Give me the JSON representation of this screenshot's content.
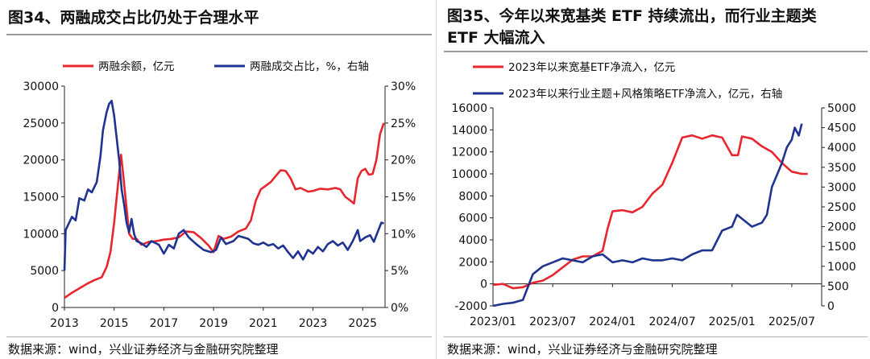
{
  "left": {
    "title": "图34、两融成交占比仍处于合理水平",
    "source": "数据来源：wind，兴业证券经济与金融研究院整理"
  },
  "right": {
    "title_line1": "图35、今年以来宽基类 ETF 持续流出，而行业主题类",
    "title_line2": "ETF 大幅流入",
    "source": "数据来源：wind，兴业证券经济与金融研究院整理"
  },
  "chart_data": [
    {
      "type": "line",
      "legend": [
        "两融余额，亿元",
        "两融成交占比，%，右轴"
      ],
      "x_ticks": [
        "2013",
        "2015",
        "2017",
        "2019",
        "2021",
        "2023",
        "2025"
      ],
      "y_left_ticks": [
        "0",
        "5000",
        "10000",
        "15000",
        "20000",
        "25000",
        "30000"
      ],
      "y_right_ticks": [
        "0%",
        "5%",
        "10%",
        "15%",
        "20%",
        "25%",
        "30%"
      ],
      "ylim_left": [
        0,
        30000
      ],
      "ylim_right": [
        0,
        30
      ],
      "xlim": [
        2013,
        2025.9
      ],
      "colors": {
        "balance": "#e8262e",
        "ratio": "#1f3390"
      },
      "series": [
        {
          "name": "两融余额，亿元",
          "axis": "left",
          "points": [
            [
              2013.0,
              1300
            ],
            [
              2013.3,
              2000
            ],
            [
              2013.6,
              2600
            ],
            [
              2013.9,
              3200
            ],
            [
              2014.2,
              3700
            ],
            [
              2014.5,
              4100
            ],
            [
              2014.7,
              5500
            ],
            [
              2014.85,
              7500
            ],
            [
              2015.0,
              11500
            ],
            [
              2015.15,
              16500
            ],
            [
              2015.28,
              20700
            ],
            [
              2015.38,
              17500
            ],
            [
              2015.5,
              13500
            ],
            [
              2015.6,
              10000
            ],
            [
              2015.75,
              9300
            ],
            [
              2015.9,
              9300
            ],
            [
              2016.1,
              8500
            ],
            [
              2016.4,
              8900
            ],
            [
              2016.7,
              9000
            ],
            [
              2017.0,
              9200
            ],
            [
              2017.3,
              9300
            ],
            [
              2017.6,
              9500
            ],
            [
              2017.9,
              10300
            ],
            [
              2018.2,
              10200
            ],
            [
              2018.5,
              9400
            ],
            [
              2018.8,
              8400
            ],
            [
              2019.0,
              7500
            ],
            [
              2019.2,
              9700
            ],
            [
              2019.4,
              9300
            ],
            [
              2019.7,
              9600
            ],
            [
              2020.0,
              10300
            ],
            [
              2020.3,
              10700
            ],
            [
              2020.5,
              11800
            ],
            [
              2020.7,
              14500
            ],
            [
              2020.9,
              16000
            ],
            [
              2021.1,
              16500
            ],
            [
              2021.3,
              17000
            ],
            [
              2021.5,
              17800
            ],
            [
              2021.7,
              18600
            ],
            [
              2021.9,
              18500
            ],
            [
              2022.1,
              17500
            ],
            [
              2022.3,
              16000
            ],
            [
              2022.5,
              16200
            ],
            [
              2022.8,
              15700
            ],
            [
              2023.0,
              15800
            ],
            [
              2023.3,
              16100
            ],
            [
              2023.6,
              16000
            ],
            [
              2023.9,
              16200
            ],
            [
              2024.1,
              16000
            ],
            [
              2024.3,
              15000
            ],
            [
              2024.5,
              14500
            ],
            [
              2024.65,
              14100
            ],
            [
              2024.8,
              17500
            ],
            [
              2024.95,
              18500
            ],
            [
              2025.1,
              18800
            ],
            [
              2025.25,
              18000
            ],
            [
              2025.4,
              18100
            ],
            [
              2025.55,
              20000
            ],
            [
              2025.7,
              23500
            ],
            [
              2025.85,
              25000
            ]
          ]
        },
        {
          "name": "两融成交占比，%，右轴",
          "axis": "right",
          "points": [
            [
              2013.0,
              5.0
            ],
            [
              2013.05,
              10.5
            ],
            [
              2013.15,
              11.2
            ],
            [
              2013.3,
              12.3
            ],
            [
              2013.45,
              11.8
            ],
            [
              2013.6,
              14.8
            ],
            [
              2013.8,
              14.5
            ],
            [
              2013.95,
              16.0
            ],
            [
              2014.1,
              15.6
            ],
            [
              2014.3,
              17.0
            ],
            [
              2014.45,
              20.5
            ],
            [
              2014.55,
              24.0
            ],
            [
              2014.7,
              26.5
            ],
            [
              2014.8,
              27.6
            ],
            [
              2014.9,
              28.0
            ],
            [
              2015.0,
              26.0
            ],
            [
              2015.1,
              23.0
            ],
            [
              2015.2,
              20.0
            ],
            [
              2015.3,
              16.0
            ],
            [
              2015.4,
              14.0
            ],
            [
              2015.5,
              11.5
            ],
            [
              2015.6,
              10.2
            ],
            [
              2015.7,
              12.0
            ],
            [
              2015.8,
              10.0
            ],
            [
              2015.9,
              9.0
            ],
            [
              2016.1,
              8.7
            ],
            [
              2016.3,
              8.2
            ],
            [
              2016.5,
              9.0
            ],
            [
              2016.8,
              8.5
            ],
            [
              2017.0,
              7.3
            ],
            [
              2017.2,
              8.5
            ],
            [
              2017.4,
              8.0
            ],
            [
              2017.6,
              10.0
            ],
            [
              2017.8,
              10.5
            ],
            [
              2018.0,
              9.5
            ],
            [
              2018.3,
              8.6
            ],
            [
              2018.6,
              7.8
            ],
            [
              2018.9,
              7.5
            ],
            [
              2019.1,
              7.8
            ],
            [
              2019.3,
              9.5
            ],
            [
              2019.5,
              8.6
            ],
            [
              2019.8,
              9.0
            ],
            [
              2020.0,
              9.7
            ],
            [
              2020.2,
              9.5
            ],
            [
              2020.4,
              9.3
            ],
            [
              2020.6,
              8.7
            ],
            [
              2020.8,
              8.5
            ],
            [
              2021.0,
              8.8
            ],
            [
              2021.2,
              8.4
            ],
            [
              2021.4,
              8.6
            ],
            [
              2021.6,
              8.0
            ],
            [
              2021.8,
              8.4
            ],
            [
              2022.0,
              7.5
            ],
            [
              2022.2,
              6.7
            ],
            [
              2022.4,
              7.6
            ],
            [
              2022.6,
              6.5
            ],
            [
              2022.8,
              7.8
            ],
            [
              2023.0,
              7.3
            ],
            [
              2023.2,
              8.2
            ],
            [
              2023.4,
              7.6
            ],
            [
              2023.6,
              8.6
            ],
            [
              2023.8,
              9.0
            ],
            [
              2024.0,
              8.4
            ],
            [
              2024.2,
              8.8
            ],
            [
              2024.4,
              7.8
            ],
            [
              2024.6,
              9.0
            ],
            [
              2024.8,
              10.5
            ],
            [
              2024.9,
              9.0
            ],
            [
              2025.1,
              9.5
            ],
            [
              2025.3,
              9.8
            ],
            [
              2025.45,
              8.9
            ],
            [
              2025.6,
              10.2
            ],
            [
              2025.75,
              11.5
            ],
            [
              2025.85,
              11.4
            ]
          ]
        }
      ]
    },
    {
      "type": "line",
      "legend": [
        "2023年以来宽基ETF净流入，亿元",
        "2023年以来行业主题+风格策略ETF净流入，亿元，右轴"
      ],
      "x_ticks": [
        "2023/01",
        "2023/07",
        "2024/01",
        "2024/07",
        "2025/01",
        "2025/07"
      ],
      "y_left_ticks": [
        "-2000",
        "0",
        "2000",
        "4000",
        "6000",
        "8000",
        "10000",
        "12000",
        "14000",
        "16000"
      ],
      "y_right_ticks": [
        "0",
        "500",
        "1000",
        "1500",
        "2000",
        "2500",
        "3000",
        "3500",
        "4000",
        "4500",
        "5000"
      ],
      "ylim_left": [
        -2000,
        16000
      ],
      "ylim_right": [
        0,
        5000
      ],
      "xlim": [
        0,
        33
      ],
      "colors": {
        "broad": "#e8262e",
        "sector": "#1f3390"
      },
      "series": [
        {
          "name": "2023年以来宽基ETF净流入，亿元",
          "axis": "left",
          "points": [
            [
              0,
              -100
            ],
            [
              1,
              0
            ],
            [
              2,
              -400
            ],
            [
              3,
              -300
            ],
            [
              4,
              100
            ],
            [
              5,
              300
            ],
            [
              6,
              800
            ],
            [
              7,
              1500
            ],
            [
              8,
              2200
            ],
            [
              9,
              2500
            ],
            [
              10,
              2500
            ],
            [
              11,
              3000
            ],
            [
              11.5,
              5000
            ],
            [
              12,
              6600
            ],
            [
              13,
              6700
            ],
            [
              14,
              6500
            ],
            [
              15,
              7000
            ],
            [
              16,
              8200
            ],
            [
              17,
              9000
            ],
            [
              18,
              11000
            ],
            [
              19,
              13300
            ],
            [
              20,
              13500
            ],
            [
              21,
              13200
            ],
            [
              22,
              13500
            ],
            [
              23,
              13300
            ],
            [
              24,
              11700
            ],
            [
              24.6,
              11700
            ],
            [
              25,
              13400
            ],
            [
              26,
              13200
            ],
            [
              27,
              12500
            ],
            [
              28,
              12000
            ],
            [
              29,
              11000
            ],
            [
              30,
              10200
            ],
            [
              31,
              10000
            ],
            [
              31.6,
              10000
            ]
          ]
        },
        {
          "name": "2023年以来行业主题+风格策略ETF净流入，亿元，右轴",
          "axis": "right",
          "points": [
            [
              0,
              0
            ],
            [
              1,
              50
            ],
            [
              2,
              80
            ],
            [
              3,
              150
            ],
            [
              4,
              800
            ],
            [
              5,
              1000
            ],
            [
              6,
              1100
            ],
            [
              7,
              1200
            ],
            [
              8,
              1150
            ],
            [
              9,
              1100
            ],
            [
              10,
              1250
            ],
            [
              11,
              1300
            ],
            [
              12,
              1100
            ],
            [
              13,
              1150
            ],
            [
              14,
              1100
            ],
            [
              15,
              1200
            ],
            [
              16,
              1150
            ],
            [
              17,
              1150
            ],
            [
              18,
              1200
            ],
            [
              19,
              1150
            ],
            [
              20,
              1300
            ],
            [
              21,
              1400
            ],
            [
              22,
              1400
            ],
            [
              23,
              1900
            ],
            [
              24,
              2000
            ],
            [
              24.5,
              2300
            ],
            [
              25,
              2200
            ],
            [
              26,
              2000
            ],
            [
              27,
              2100
            ],
            [
              27.5,
              2300
            ],
            [
              28,
              3000
            ],
            [
              28.5,
              3300
            ],
            [
              29,
              3600
            ],
            [
              29.5,
              4000
            ],
            [
              30,
              4200
            ],
            [
              30.3,
              4500
            ],
            [
              30.7,
              4300
            ],
            [
              31,
              4600
            ]
          ]
        }
      ]
    }
  ]
}
